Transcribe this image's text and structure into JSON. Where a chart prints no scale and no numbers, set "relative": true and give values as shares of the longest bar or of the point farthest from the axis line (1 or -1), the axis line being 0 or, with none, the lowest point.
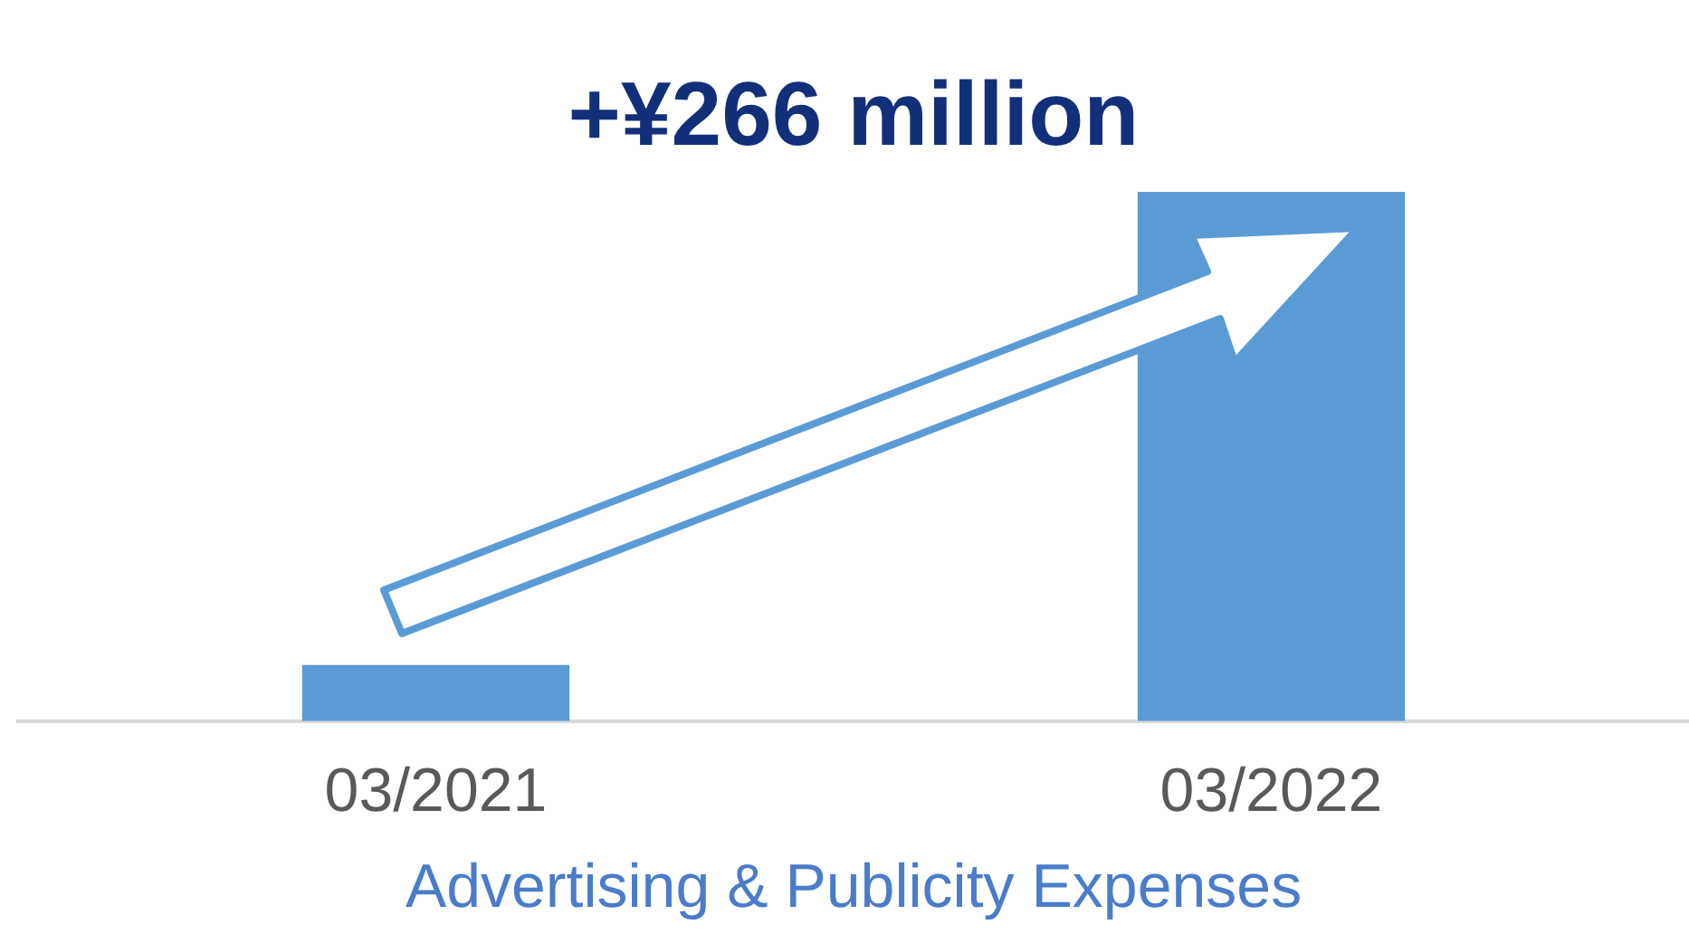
{
  "chart_data": {
    "type": "bar",
    "relative": true,
    "title": "+¥266 million",
    "xlabel": "Advertising & Publicity Expenses",
    "categories": [
      "03/2021",
      "03/2022"
    ],
    "values": [
      0.106,
      1
    ],
    "color": "#5b9bd5",
    "legend": false
  }
}
